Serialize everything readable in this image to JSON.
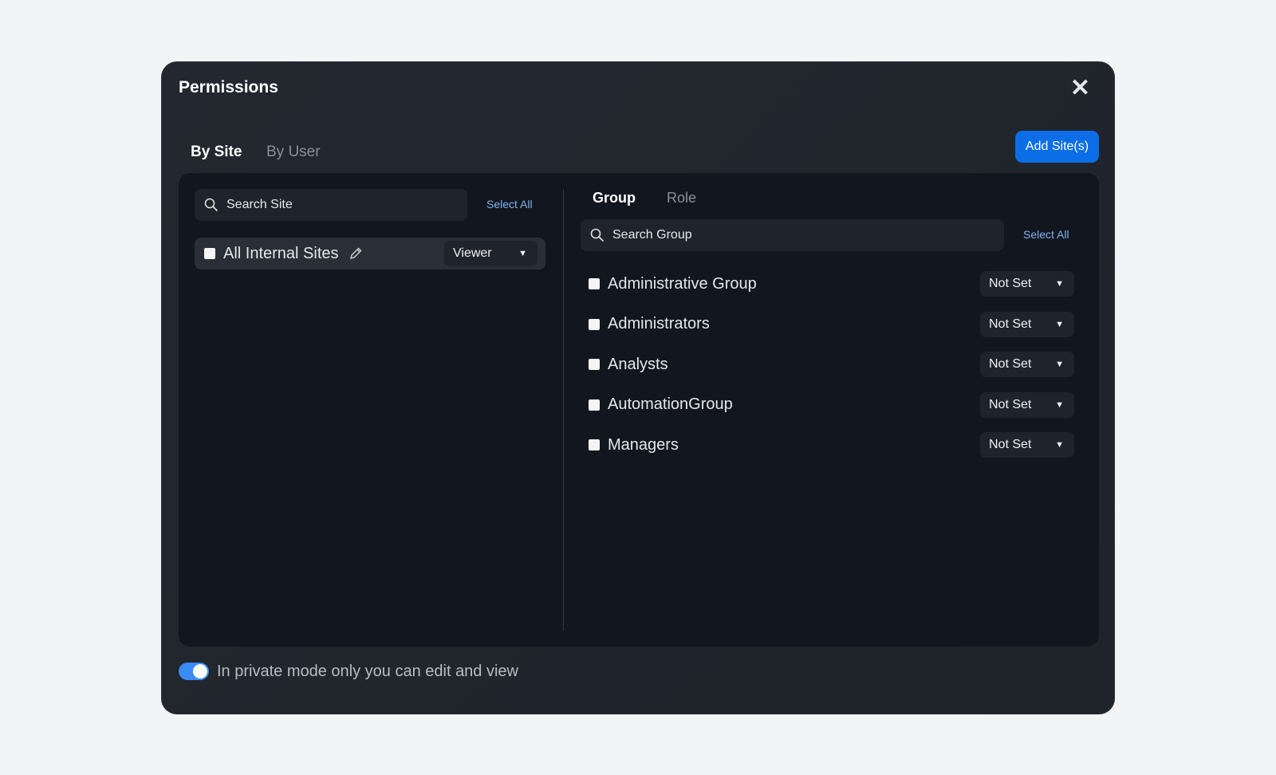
{
  "dialog": {
    "title": "Permissions",
    "close_icon": "close-icon"
  },
  "tabs": [
    {
      "label": "By Site",
      "active": true
    },
    {
      "label": "By User",
      "active": false
    }
  ],
  "add_button": "Add Site(s)",
  "sites": {
    "search_placeholder": "Search Site",
    "select_all": "Select All",
    "items": [
      {
        "name": "All Internal Sites",
        "role": "Viewer",
        "checked": false
      }
    ]
  },
  "groups": {
    "tabs": [
      {
        "label": "Group",
        "active": true
      },
      {
        "label": "Role",
        "active": false
      }
    ],
    "search_placeholder": "Search Group",
    "select_all": "Select All",
    "items": [
      {
        "name": "Administrative Group",
        "value": "Not Set"
      },
      {
        "name": "Administrators",
        "value": "Not Set"
      },
      {
        "name": "Analysts",
        "value": "Not Set"
      },
      {
        "name": "AutomationGroup",
        "value": "Not Set"
      },
      {
        "name": "Managers",
        "value": "Not Set"
      }
    ]
  },
  "private_mode": {
    "enabled": true,
    "label": "In private mode only you can edit and view"
  },
  "colors": {
    "accent": "#0b6ee6",
    "link": "#7fb2ee",
    "toggle": "#3b8cf5"
  }
}
